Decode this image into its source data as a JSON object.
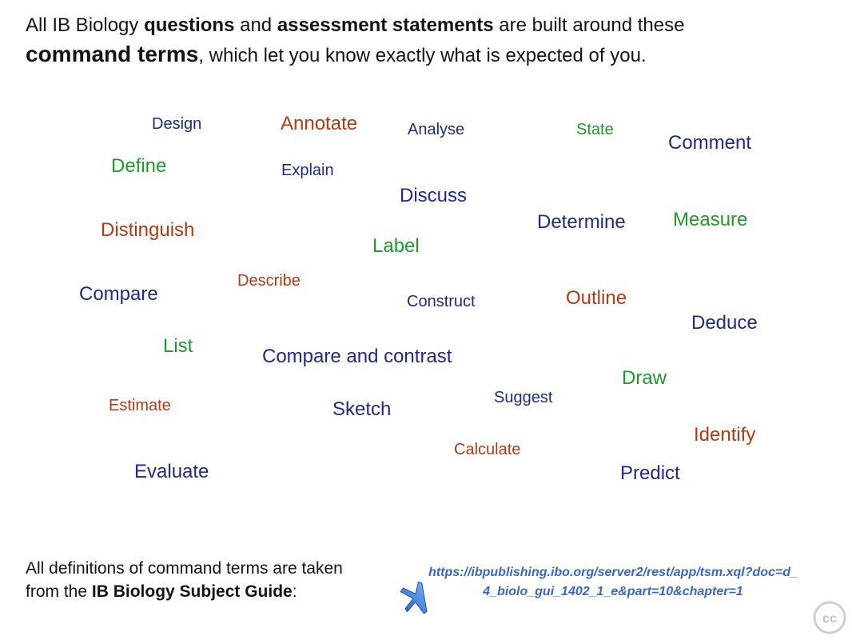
{
  "intro": {
    "p1": "All IB Biology ",
    "b1": "questions",
    "p2": " and ",
    "b2": "assessment statements",
    "p3": " are built around these ",
    "big": "command terms",
    "p4": ", which let you know exactly what is expected of you."
  },
  "terms": {
    "design": "Design",
    "annotate": "Annotate",
    "analyse": "Analyse",
    "state": "State",
    "comment": "Comment",
    "define": "Define",
    "explain": "Explain",
    "discuss": "Discuss",
    "determine": "Determine",
    "measure": "Measure",
    "distinguish": "Distinguish",
    "label": "Label",
    "describe": "Describe",
    "compare": "Compare",
    "construct": "Construct",
    "outline": "Outline",
    "deduce": "Deduce",
    "list": "List",
    "compare_contrast": "Compare and contrast",
    "draw": "Draw",
    "suggest": "Suggest",
    "estimate": "Estimate",
    "sketch": "Sketch",
    "identify": "Identify",
    "calculate": "Calculate",
    "evaluate": "Evaluate",
    "predict": "Predict"
  },
  "footer": {
    "line1": "All definitions of command terms are taken",
    "line2a": "from the ",
    "line2b": "IB Biology Subject Guide",
    "line2c": ":"
  },
  "link": {
    "url": "https://ibpublishing.ibo.org/server2/rest/app/tsm.xql?doc=d_4_biolo_gui_1402_1_e&part=10&chapter=1"
  },
  "badge": {
    "cc": "cc"
  },
  "icons": {
    "arrow": "arrow-icon",
    "cc": "cc-icon"
  }
}
